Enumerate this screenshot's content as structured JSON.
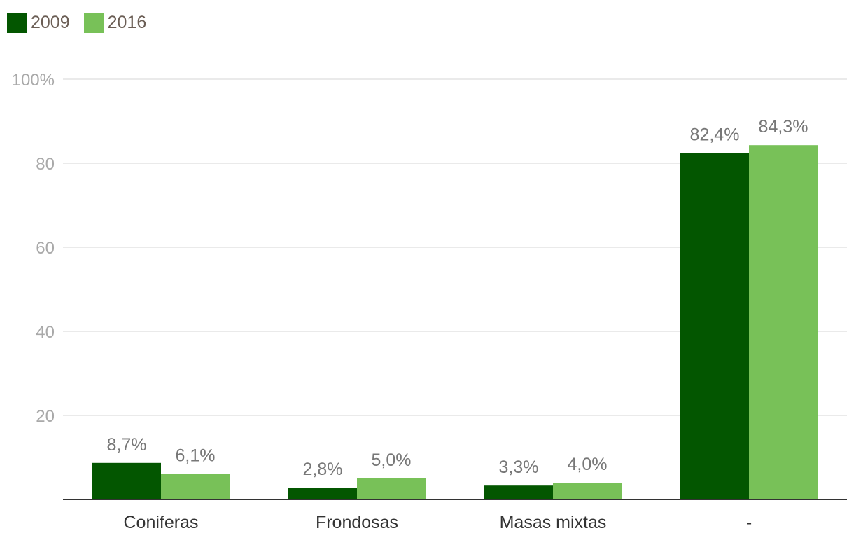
{
  "chart_data": {
    "type": "bar",
    "categories": [
      "Coniferas",
      "Frondosas",
      "Masas mixtas",
      "-"
    ],
    "series": [
      {
        "name": "2009",
        "color": "#035600",
        "values": [
          8.7,
          2.8,
          3.3,
          82.4
        ],
        "labels": [
          "8,7%",
          "2,8%",
          "3,3%",
          "82,4%"
        ]
      },
      {
        "name": "2016",
        "color": "#78c158",
        "values": [
          6.1,
          5.0,
          4.0,
          84.3
        ],
        "labels": [
          "6,1%",
          "5,0%",
          "4,0%",
          "84,3%"
        ]
      }
    ],
    "ylim": [
      0,
      100
    ],
    "yticks": [
      {
        "value": 20,
        "label": "20"
      },
      {
        "value": 40,
        "label": "40"
      },
      {
        "value": 60,
        "label": "60"
      },
      {
        "value": 80,
        "label": "80"
      },
      {
        "value": 100,
        "label": "100%"
      }
    ],
    "grid": true,
    "legend_position": "top-left"
  }
}
